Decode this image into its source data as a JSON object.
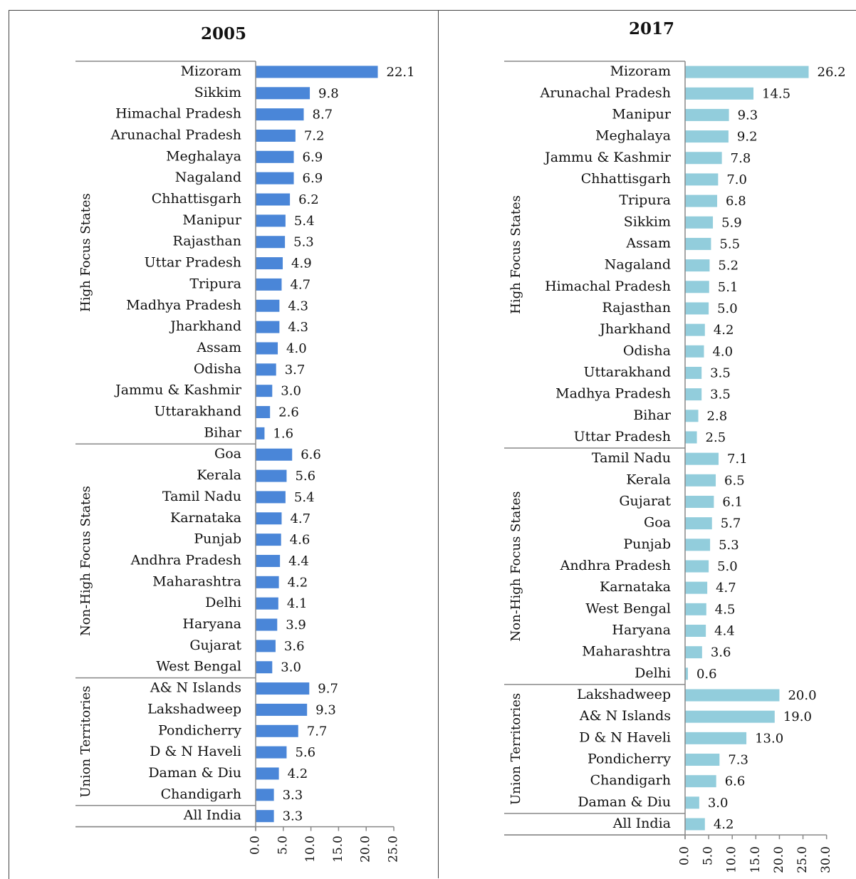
{
  "chart_data": [
    {
      "type": "bar",
      "orientation": "horizontal",
      "title": "2005",
      "color": "#4a86d8",
      "xlim": [
        0,
        25
      ],
      "ticks": [
        "0.0",
        "5.0",
        "10.0",
        "15.0",
        "20.0",
        "25.0"
      ],
      "groups": [
        {
          "name": "High Focus States",
          "categories": [
            "Mizoram",
            "Sikkim",
            "Himachal Pradesh",
            "Arunachal Pradesh",
            "Meghalaya",
            "Nagaland",
            "Chhattisgarh",
            "Manipur",
            "Rajasthan",
            "Uttar Pradesh",
            "Tripura",
            "Madhya Pradesh",
            "Jharkhand",
            "Assam",
            "Odisha",
            "Jammu & Kashmir",
            "Uttarakhand",
            "Bihar"
          ],
          "values": [
            22.1,
            9.8,
            8.7,
            7.2,
            6.9,
            6.9,
            6.2,
            5.4,
            5.3,
            4.9,
            4.7,
            4.3,
            4.3,
            4.0,
            3.7,
            3.0,
            2.6,
            1.6
          ],
          "labels": [
            "22.1",
            "9.8",
            "8.7",
            "7.2",
            "6.9",
            "6.9",
            "6.2",
            "5.4",
            "5.3",
            "4.9",
            "4.7",
            "4.3",
            "4.3",
            "4.0",
            "3.7",
            "3.0",
            "2.6",
            "1.6"
          ]
        },
        {
          "name": "Non-High Focus States",
          "categories": [
            "Goa",
            "Kerala",
            "Tamil Nadu",
            "Karnataka",
            "Punjab",
            "Andhra Pradesh",
            "Maharashtra",
            "Delhi",
            "Haryana",
            "Gujarat",
            "West Bengal"
          ],
          "values": [
            6.6,
            5.6,
            5.4,
            4.7,
            4.6,
            4.4,
            4.2,
            4.1,
            3.9,
            3.6,
            3.0
          ],
          "labels": [
            "6.6",
            "5.6",
            "5.4",
            "4.7",
            "4.6",
            "4.4",
            "4.2",
            "4.1",
            "3.9",
            "3.6",
            "3.0"
          ]
        },
        {
          "name": "Union Territories",
          "categories": [
            "A& N Islands",
            "Lakshadweep",
            "Pondicherry",
            "D & N Haveli",
            "Daman & Diu",
            "Chandigarh"
          ],
          "values": [
            9.7,
            9.3,
            7.7,
            5.6,
            4.2,
            3.3
          ],
          "labels": [
            "9.7",
            "9.3",
            "7.7",
            "5.6",
            "4.2",
            "3.3"
          ]
        },
        {
          "name": "",
          "categories": [
            "All India"
          ],
          "values": [
            3.3
          ],
          "labels": [
            "3.3"
          ]
        }
      ]
    },
    {
      "type": "bar",
      "orientation": "horizontal",
      "title": "2017",
      "color": "#92cddc",
      "xlim": [
        0,
        30
      ],
      "ticks": [
        "0.0",
        "5.0",
        "10.0",
        "15.0",
        "20.0",
        "25.0",
        "30.0"
      ],
      "groups": [
        {
          "name": "High Focus States",
          "categories": [
            "Mizoram",
            "Arunachal Pradesh",
            "Manipur",
            "Meghalaya",
            "Jammu & Kashmir",
            "Chhattisgarh",
            "Tripura",
            "Sikkim",
            "Assam",
            "Nagaland",
            "Himachal Pradesh",
            "Rajasthan",
            "Jharkhand",
            "Odisha",
            "Uttarakhand",
            "Madhya Pradesh",
            "Bihar",
            "Uttar Pradesh"
          ],
          "values": [
            26.2,
            14.5,
            9.3,
            9.2,
            7.8,
            7.0,
            6.8,
            5.9,
            5.5,
            5.2,
            5.1,
            5.0,
            4.2,
            4.0,
            3.5,
            3.5,
            2.8,
            2.5
          ],
          "labels": [
            "26.2",
            "14.5",
            "9.3",
            "9.2",
            "7.8",
            "7.0",
            "6.8",
            "5.9",
            "5.5",
            "5.2",
            "5.1",
            "5.0",
            "4.2",
            "4.0",
            "3.5",
            "3.5",
            "2.8",
            "2.5"
          ]
        },
        {
          "name": "Non-High Focus States",
          "categories": [
            "Tamil Nadu",
            "Kerala",
            "Gujarat",
            "Goa",
            "Punjab",
            "Andhra Pradesh",
            "Karnataka",
            "West Bengal",
            "Haryana",
            "Maharashtra",
            "Delhi"
          ],
          "values": [
            7.1,
            6.5,
            6.1,
            5.7,
            5.3,
            5.0,
            4.7,
            4.5,
            4.4,
            3.6,
            0.6
          ],
          "labels": [
            "7.1",
            "6.5",
            "6.1",
            "5.7",
            "5.3",
            "5.0",
            "4.7",
            "4.5",
            "4.4",
            "3.6",
            "0.6"
          ]
        },
        {
          "name": "Union Territories",
          "categories": [
            "Lakshadweep",
            "A& N Islands",
            "D & N Haveli",
            "Pondicherry",
            "Chandigarh",
            "Daman & Diu"
          ],
          "values": [
            20.0,
            19.0,
            13.0,
            7.3,
            6.6,
            3.0
          ],
          "labels": [
            "20.0",
            "19.0",
            "13.0",
            "7.3",
            "6.6",
            "3.0"
          ]
        },
        {
          "name": "",
          "categories": [
            "All India"
          ],
          "values": [
            4.2
          ],
          "labels": [
            "4.2"
          ]
        }
      ]
    }
  ]
}
